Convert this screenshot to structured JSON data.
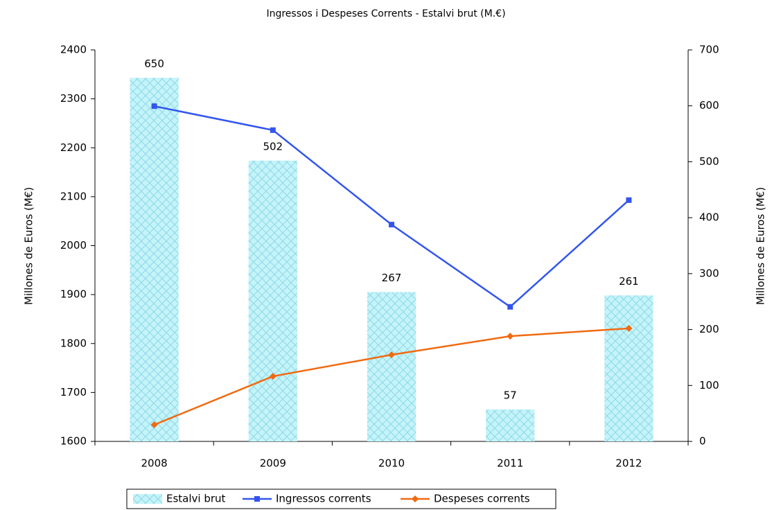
{
  "chart_data": {
    "type": "combo",
    "title": "Ingressos i Despeses Corrents  - Estalvi brut (M.€)",
    "y_label": "Millones de Euros (M€)",
    "y2_label": "Millones de Euros (M€)",
    "categories": [
      "2008",
      "2009",
      "2010",
      "2011",
      "2012"
    ],
    "series": [
      {
        "name": "Estalvi brut",
        "type": "bar",
        "axis": "y2",
        "color": "#aef0f7",
        "values": [
          650,
          502,
          267,
          57,
          261
        ]
      },
      {
        "name": "Ingressos corrents",
        "type": "line",
        "marker": "square",
        "color": "#3355ee",
        "values": [
          2285,
          2236,
          2043,
          1875,
          2093
        ]
      },
      {
        "name": "Despeses corrents",
        "type": "line",
        "marker": "diamond",
        "color": "#f06a10",
        "values": [
          1634,
          1733,
          1777,
          1815,
          1831
        ]
      }
    ],
    "ylim": [
      1600,
      2400
    ],
    "yticks": [
      1600,
      1700,
      1800,
      1900,
      2000,
      2100,
      2200,
      2300,
      2400
    ],
    "y2lim": [
      0,
      700
    ],
    "y2ticks": [
      0,
      100,
      200,
      300,
      400,
      500,
      600,
      700
    ],
    "grid": false,
    "legend": "bottom"
  }
}
